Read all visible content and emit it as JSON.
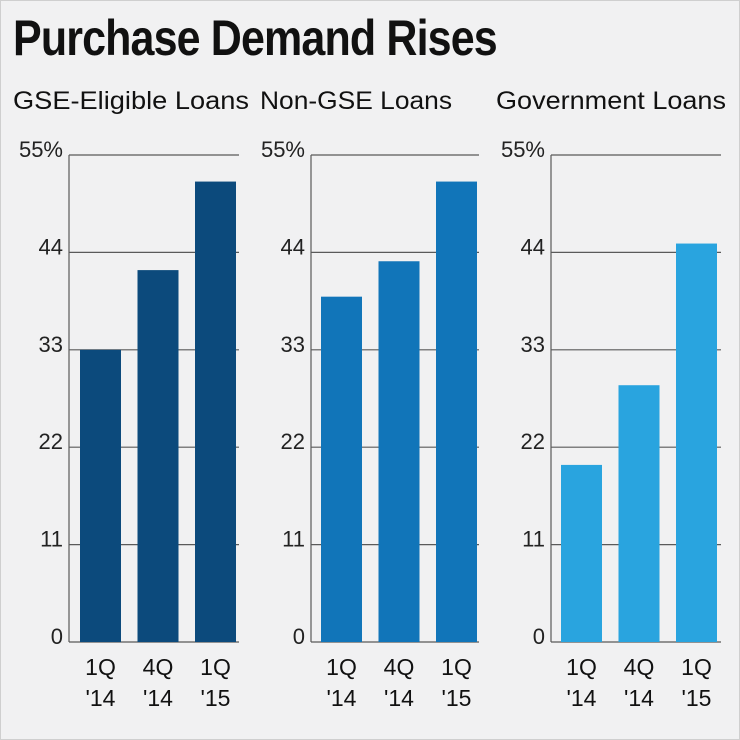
{
  "title": "Purchase Demand Rises",
  "chart_data": [
    {
      "type": "bar",
      "title": "GSE-Eligible Loans",
      "categories": [
        [
          "1Q",
          "'14"
        ],
        [
          "4Q",
          "'14"
        ],
        [
          "1Q",
          "'15"
        ]
      ],
      "values": [
        33,
        42,
        52
      ],
      "yticks": [
        "0",
        "11",
        "22",
        "33",
        "44",
        "55%"
      ],
      "ylim": [
        0,
        55
      ],
      "color": "#0c4a7c"
    },
    {
      "type": "bar",
      "title": "Non-GSE Loans",
      "categories": [
        [
          "1Q",
          "'14"
        ],
        [
          "4Q",
          "'14"
        ],
        [
          "1Q",
          "'15"
        ]
      ],
      "values": [
        39,
        43,
        52
      ],
      "yticks": [
        "0",
        "11",
        "22",
        "33",
        "44",
        "55%"
      ],
      "ylim": [
        0,
        55
      ],
      "color": "#1175b9"
    },
    {
      "type": "bar",
      "title": "Government Loans",
      "categories": [
        [
          "1Q",
          "'14"
        ],
        [
          "4Q",
          "'14"
        ],
        [
          "1Q",
          "'15"
        ]
      ],
      "values": [
        20,
        29,
        45
      ],
      "yticks": [
        "0",
        "11",
        "22",
        "33",
        "44",
        "55%"
      ],
      "ylim": [
        0,
        55
      ],
      "color": "#29a4df"
    }
  ]
}
